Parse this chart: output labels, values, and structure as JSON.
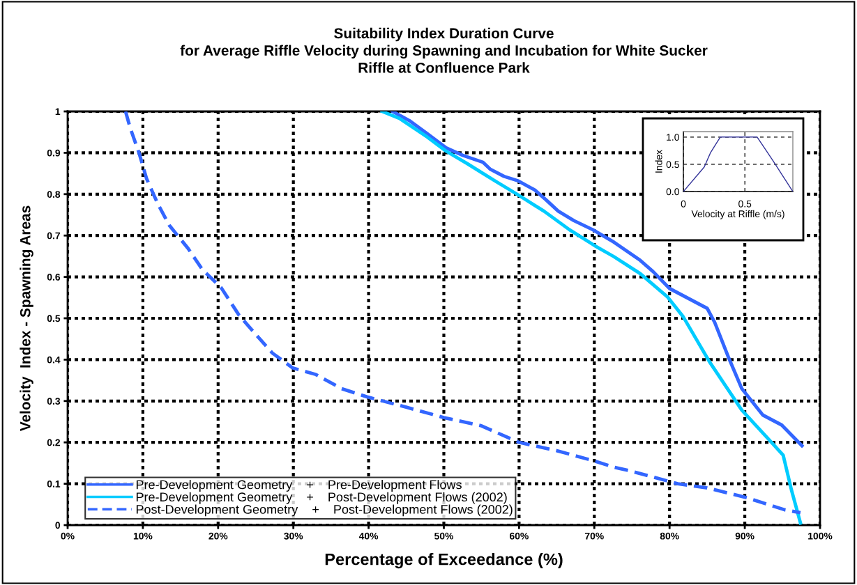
{
  "chart_data": [
    {
      "type": "line",
      "title": "Suitability Index Duration Curve\nfor Average Riffle Velocity during Spawning and Incubation for White Sucker\nRiffle at Confluence Park",
      "xlabel": "Percentage of Exceedance (%)",
      "ylabel": "Velocity  Index - Spawning Areas",
      "xlim": [
        0,
        100
      ],
      "ylim": [
        0,
        1
      ],
      "xticks": [
        {
          "value": 0,
          "label": "0%"
        },
        {
          "value": 10,
          "label": "10%"
        },
        {
          "value": 20,
          "label": "20%"
        },
        {
          "value": 30,
          "label": "30%"
        },
        {
          "value": 40,
          "label": "40%"
        },
        {
          "value": 50,
          "label": "50%"
        },
        {
          "value": 60,
          "label": "60%"
        },
        {
          "value": 70,
          "label": "70%"
        },
        {
          "value": 80,
          "label": "80%"
        },
        {
          "value": 90,
          "label": "90%"
        },
        {
          "value": 100,
          "label": "100%"
        }
      ],
      "yticks": [
        0,
        0.1,
        0.2,
        0.3,
        0.4,
        0.5,
        0.6,
        0.7,
        0.8,
        0.9,
        1
      ],
      "grid": true,
      "legend": "bottom left",
      "series": [
        {
          "name": "Pre-Development Geometry    +    Pre-Development Flows",
          "color": "#3366ff",
          "line_style": "solid",
          "x": [
            43.2,
            45.4,
            47.8,
            50.3,
            52.5,
            55.2,
            56.2,
            58,
            59.9,
            62.1,
            63.6,
            65.2,
            67.3,
            69.8,
            72.6,
            76.1,
            77.8,
            80,
            85,
            86,
            87.8,
            89.6,
            92.4,
            94.9,
            97.6
          ],
          "values": [
            1.0,
            0.978,
            0.946,
            0.912,
            0.894,
            0.877,
            0.86,
            0.843,
            0.832,
            0.81,
            0.786,
            0.759,
            0.736,
            0.714,
            0.684,
            0.64,
            0.613,
            0.572,
            0.524,
            0.49,
            0.407,
            0.33,
            0.266,
            0.242,
            0.192
          ]
        },
        {
          "name": "Pre-Development Geometry    +    Post-Development Flows (2002)",
          "color": "#00ccff",
          "line_style": "solid",
          "x": [
            41.8,
            44.1,
            47.8,
            50.3,
            53.1,
            56.8,
            59.9,
            63.3,
            66.7,
            70.1,
            72.6,
            76.1,
            79.7,
            81.8,
            85.3,
            89.6,
            93.5,
            95.1,
            96.2,
            97.4
          ],
          "values": [
            1.0,
            0.983,
            0.938,
            0.904,
            0.874,
            0.832,
            0.798,
            0.759,
            0.714,
            0.675,
            0.649,
            0.608,
            0.552,
            0.504,
            0.395,
            0.278,
            0.201,
            0.169,
            0.085,
            0.005
          ]
        },
        {
          "name": "Post-Development Geometry    +    Post-Development Flows (2002)",
          "color": "#3366ff",
          "line_style": "dashed",
          "x": [
            7.7,
            8.3,
            9.5,
            10.5,
            12,
            13.5,
            16,
            17.9,
            20.4,
            22.8,
            25,
            27.2,
            29.9,
            33,
            36.4,
            39.8,
            45,
            50,
            55,
            60,
            65,
            70,
            72.6,
            75,
            81.1,
            85,
            90.3,
            95.3,
            97.4
          ],
          "values": [
            1.0,
            0.961,
            0.899,
            0.837,
            0.776,
            0.725,
            0.669,
            0.618,
            0.574,
            0.507,
            0.461,
            0.416,
            0.38,
            0.364,
            0.33,
            0.31,
            0.285,
            0.26,
            0.24,
            0.2,
            0.18,
            0.155,
            0.14,
            0.13,
            0.1,
            0.09,
            0.066,
            0.037,
            0.03
          ]
        }
      ]
    },
    {
      "type": "line",
      "ylabel": "Index",
      "xlabel": "Velocity at Riffle (m/s)",
      "xlim": [
        0,
        0.89
      ],
      "ylim": [
        0,
        1.1
      ],
      "xticks": [
        0,
        0.5
      ],
      "yticks": [
        {
          "value": 0,
          "label": "0.0"
        },
        {
          "value": 0.5,
          "label": "0.5"
        },
        {
          "value": 1.0,
          "label": "1.0"
        }
      ],
      "grid": true,
      "series": [
        {
          "color": "#333399",
          "line_style": "solid",
          "x": [
            0,
            0.17,
            0.22,
            0.3,
            0.6,
            0.73,
            0.89
          ],
          "values": [
            0,
            0.45,
            0.71,
            1.0,
            1.0,
            0.56,
            0
          ]
        }
      ]
    }
  ]
}
